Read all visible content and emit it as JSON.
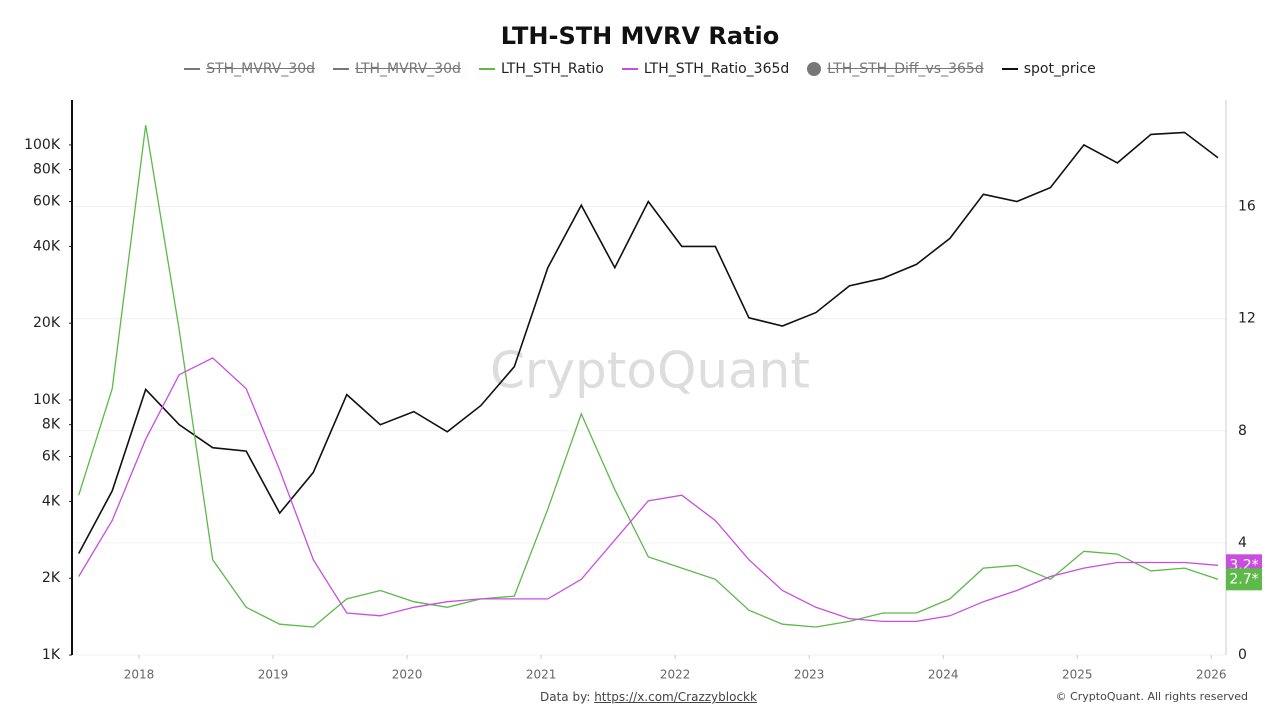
{
  "chart_data": {
    "type": "line",
    "title": "LTH-STH MVRV Ratio",
    "watermark": "CryptoQuant",
    "x": [
      2017.55,
      2017.8,
      2018.05,
      2018.3,
      2018.55,
      2018.8,
      2019.05,
      2019.3,
      2019.55,
      2019.8,
      2020.05,
      2020.3,
      2020.55,
      2020.8,
      2021.05,
      2021.3,
      2021.55,
      2021.8,
      2022.05,
      2022.3,
      2022.55,
      2022.8,
      2023.05,
      2023.3,
      2023.55,
      2023.8,
      2024.05,
      2024.3,
      2024.55,
      2024.8,
      2025.05,
      2025.3,
      2025.55,
      2025.8,
      2026.05
    ],
    "xlim": [
      2017.5,
      2026.11
    ],
    "xticks": [
      2018,
      2019,
      2020,
      2021,
      2022,
      2023,
      2024,
      2025,
      2026
    ],
    "ylog": true,
    "ylim": [
      1000,
      150000
    ],
    "yticks": [
      {
        "value": 1000,
        "label": "1K"
      },
      {
        "value": 2000,
        "label": "2K"
      },
      {
        "value": 4000,
        "label": "4K"
      },
      {
        "value": 6000,
        "label": "6K"
      },
      {
        "value": 8000,
        "label": "8K"
      },
      {
        "value": 10000,
        "label": "10K"
      },
      {
        "value": 20000,
        "label": "20K"
      },
      {
        "value": 40000,
        "label": "40K"
      },
      {
        "value": 60000,
        "label": "60K"
      },
      {
        "value": 80000,
        "label": "80K"
      },
      {
        "value": 100000,
        "label": "100K"
      }
    ],
    "y2lim": [
      0,
      19.8
    ],
    "y2ticks": [
      0,
      4,
      8,
      12,
      16
    ],
    "grid": true,
    "series": [
      {
        "name": "STH_MVRV_30d",
        "color": "#777777",
        "visible": false
      },
      {
        "name": "LTH_MVRV_30d",
        "color": "#777777",
        "visible": false
      },
      {
        "name": "LTH_STH_Ratio",
        "color": "#5cb94a",
        "axis": "y2",
        "last_label": "2.7*",
        "values": [
          5.7,
          9.5,
          18.9,
          11.6,
          3.4,
          1.7,
          1.1,
          1.0,
          2.0,
          2.3,
          1.9,
          1.7,
          2.0,
          2.1,
          5.2,
          8.6,
          5.9,
          3.5,
          3.1,
          2.7,
          1.6,
          1.1,
          1.0,
          1.2,
          1.5,
          1.5,
          2.0,
          3.1,
          3.2,
          2.7,
          3.7,
          3.6,
          3.0,
          3.1,
          2.7
        ]
      },
      {
        "name": "LTH_STH_Ratio_365d",
        "color": "#c94ee0",
        "axis": "y2",
        "last_label": "3.2*",
        "values": [
          2.8,
          4.8,
          7.7,
          10.0,
          10.6,
          9.5,
          6.6,
          3.4,
          1.5,
          1.4,
          1.7,
          1.9,
          2.0,
          2.0,
          2.0,
          2.7,
          4.1,
          5.5,
          5.7,
          4.8,
          3.4,
          2.3,
          1.7,
          1.3,
          1.2,
          1.2,
          1.4,
          1.9,
          2.3,
          2.8,
          3.1,
          3.3,
          3.3,
          3.3,
          3.2
        ]
      },
      {
        "name": "LTH_STH_Diff_vs_365d",
        "color": "#777777",
        "visible": false,
        "marker": "circle"
      },
      {
        "name": "spot_price",
        "color": "#111111",
        "axis": "y",
        "values": [
          2500,
          4400,
          11000,
          8000,
          6500,
          6300,
          3600,
          5200,
          10500,
          8000,
          9000,
          7500,
          9500,
          13500,
          33000,
          58000,
          33000,
          60000,
          40000,
          40000,
          21000,
          19500,
          22000,
          28000,
          30000,
          34000,
          43000,
          64000,
          60000,
          68000,
          100000,
          85000,
          110000,
          112000,
          89000
        ]
      }
    ],
    "footer": {
      "data_by": "Data by:",
      "link": "https://x.com/Crazzyblockk",
      "copyright": "© CryptoQuant. All rights reserved"
    }
  }
}
